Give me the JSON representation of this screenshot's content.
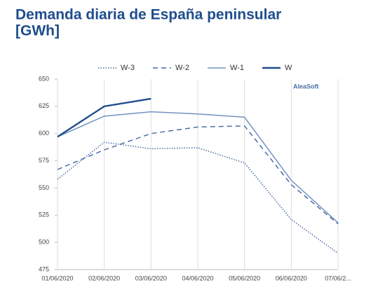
{
  "chart_data": {
    "type": "line",
    "title": [
      "Demanda diaria de España peninsular",
      "[GWh]"
    ],
    "watermark": "AleaSoft",
    "categories": [
      "01/06/2020",
      "02/06/2020",
      "03/06/2020",
      "04/06/2020",
      "05/06/2020",
      "06/06/2020",
      "07/06/2..."
    ],
    "series": [
      {
        "name": "W-3",
        "color": "#4a6fa5",
        "dash": "dotted",
        "values": [
          558,
          592,
          586,
          587,
          573,
          521,
          490
        ]
      },
      {
        "name": "W-2",
        "color": "#4a6fa5",
        "dash": "dashed",
        "values": [
          567,
          585,
          600,
          606,
          607,
          553,
          517
        ]
      },
      {
        "name": "W-1",
        "color": "#7592c2",
        "dash": "solid",
        "values": [
          597,
          616,
          620,
          618,
          615,
          557,
          518
        ]
      },
      {
        "name": "W",
        "color": "#1f4e8c",
        "dash": "solid",
        "values": [
          597,
          625,
          632,
          null,
          null,
          null,
          null
        ]
      }
    ],
    "ylim": [
      475,
      650
    ],
    "yticks": [
      475,
      500,
      525,
      550,
      575,
      600,
      625,
      650
    ],
    "grid": "x",
    "legend": "top"
  }
}
